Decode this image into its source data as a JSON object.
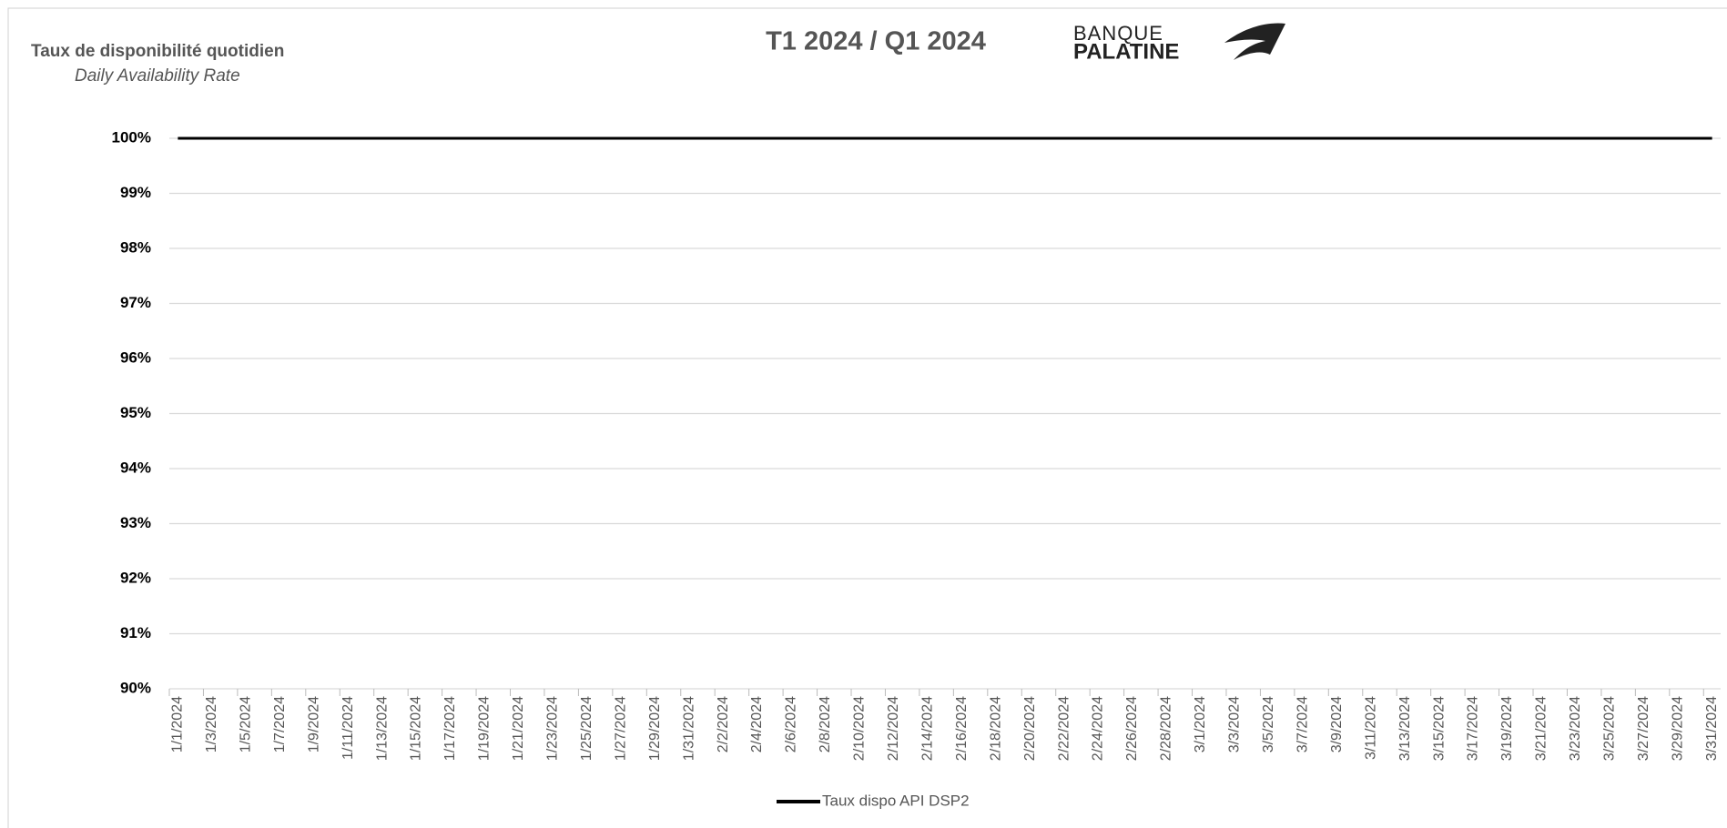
{
  "chart_data": {
    "type": "line",
    "title": "T1 2024 / Q1 2024",
    "y_label": "Taux de disponibilité quotidien",
    "y_sublabel": "Daily Availability Rate",
    "logo": [
      "BANQUE",
      "PALATINE"
    ],
    "categories": [
      "1/1/2024",
      null,
      "1/3/2024",
      null,
      "1/5/2024",
      null,
      "1/7/2024",
      null,
      "1/9/2024",
      null,
      "1/11/2024",
      null,
      "1/13/2024",
      null,
      "1/15/2024",
      null,
      "1/17/2024",
      null,
      "1/19/2024",
      null,
      "1/21/2024",
      null,
      "1/23/2024",
      null,
      "1/25/2024",
      null,
      "1/27/2024",
      null,
      "1/29/2024",
      null,
      "1/31/2024",
      null,
      "2/2/2024",
      null,
      "2/4/2024",
      null,
      "2/6/2024",
      null,
      "2/8/2024",
      null,
      "2/10/2024",
      null,
      "2/12/2024",
      null,
      "2/14/2024",
      null,
      "2/16/2024",
      null,
      "2/18/2024",
      null,
      "2/20/2024",
      null,
      "2/22/2024",
      null,
      "2/24/2024",
      null,
      "2/26/2024",
      null,
      "2/28/2024",
      null,
      "3/1/2024",
      null,
      "3/3/2024",
      null,
      "3/5/2024",
      null,
      "3/7/2024",
      null,
      "3/9/2024",
      null,
      "3/11/2024",
      null,
      "3/13/2024",
      null,
      "3/15/2024",
      null,
      "3/17/2024",
      null,
      "3/19/2024",
      null,
      "3/21/2024",
      null,
      "3/23/2024",
      null,
      "3/25/2024",
      null,
      "3/27/2024",
      null,
      "3/29/2024",
      null,
      "3/31/2024"
    ],
    "series": [
      {
        "name": "Taux dispo API DSP2",
        "color": "#000000",
        "values": [
          100,
          100,
          100,
          100,
          100,
          100,
          100,
          100,
          100,
          100,
          100,
          100,
          100,
          100,
          100,
          100,
          100,
          100,
          100,
          100,
          100,
          100,
          100,
          100,
          100,
          100,
          100,
          100,
          100,
          100,
          100,
          100,
          100,
          100,
          100,
          100,
          100,
          100,
          100,
          100,
          100,
          100,
          100,
          100,
          100,
          100,
          100,
          100,
          100,
          100,
          100,
          100,
          100,
          100,
          100,
          100,
          100,
          100,
          100,
          100,
          100,
          100,
          100,
          100,
          100,
          100,
          100,
          100,
          100,
          100,
          100,
          100,
          100,
          100,
          100,
          100,
          100,
          100,
          100,
          100,
          100,
          100,
          100,
          100,
          100,
          100,
          100,
          100,
          100,
          100,
          100
        ]
      }
    ],
    "ylim": [
      90,
      100
    ],
    "yticks": [
      {
        "value": 90,
        "label": "90%"
      },
      {
        "value": 91,
        "label": "91%"
      },
      {
        "value": 92,
        "label": "92%"
      },
      {
        "value": 93,
        "label": "93%"
      },
      {
        "value": 94,
        "label": "94%"
      },
      {
        "value": 95,
        "label": "95%"
      },
      {
        "value": 96,
        "label": "96%"
      },
      {
        "value": 97,
        "label": "97%"
      },
      {
        "value": 98,
        "label": "98%"
      },
      {
        "value": 99,
        "label": "99%"
      },
      {
        "value": 100,
        "label": "100%"
      }
    ],
    "grid": true,
    "legend": "bottom"
  }
}
